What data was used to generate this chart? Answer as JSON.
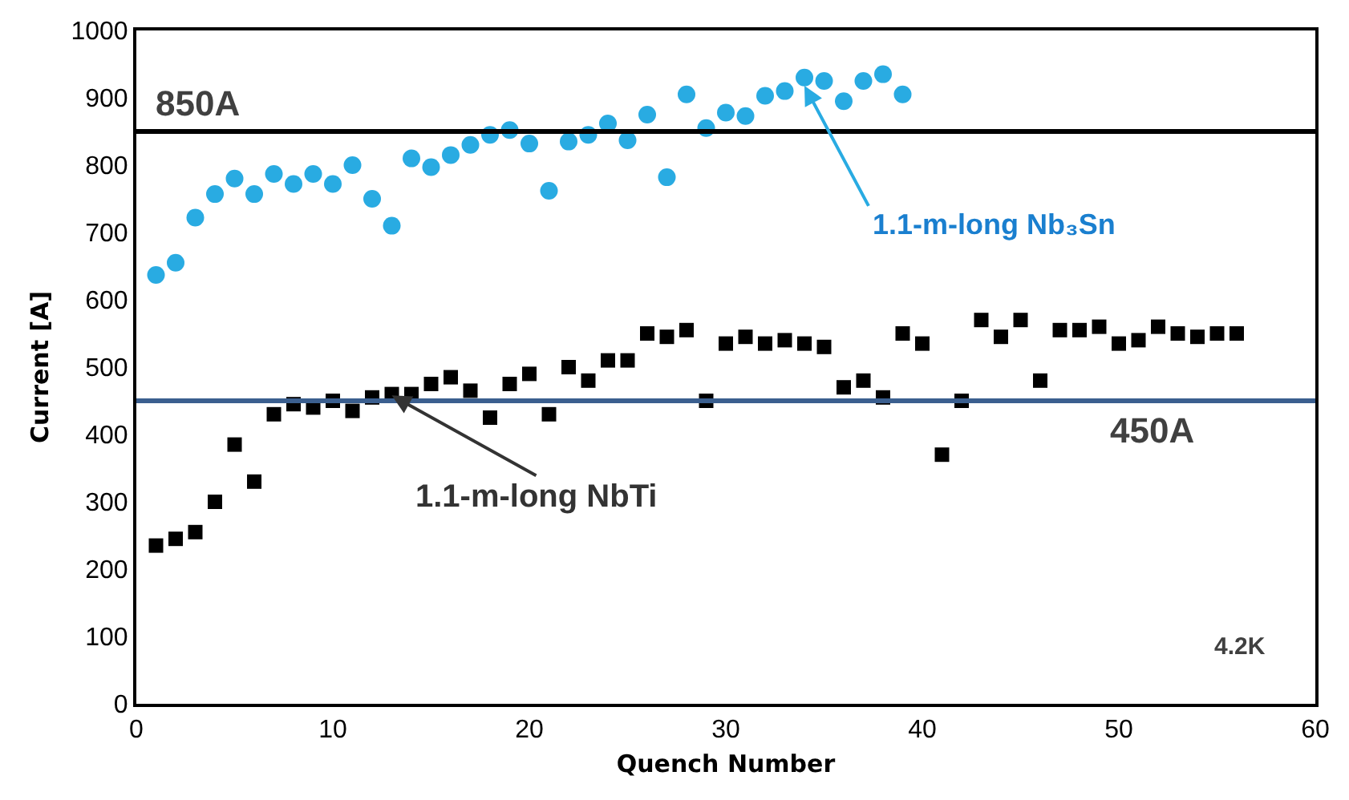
{
  "chart_data": {
    "type": "scatter",
    "xlabel": "Quench Number",
    "ylabel": "Current [A]",
    "xlim": [
      0,
      60
    ],
    "xticks": [
      0,
      10,
      20,
      30,
      40,
      50,
      60
    ],
    "ylim": [
      0,
      1000
    ],
    "yticks": [
      0,
      100,
      200,
      300,
      400,
      500,
      600,
      700,
      800,
      900,
      1000
    ],
    "series": [
      {
        "color": "#29abe2",
        "marker": "circle",
        "x": [
          1,
          2,
          3,
          4,
          5,
          6,
          7,
          8,
          9,
          10,
          11,
          12,
          13,
          14,
          15,
          16,
          17,
          18,
          19,
          20,
          21,
          22,
          23,
          24,
          25,
          26,
          27,
          28,
          29,
          30,
          31,
          32,
          33,
          34,
          35,
          36,
          37,
          38,
          39
        ],
        "values": [
          637,
          655,
          722,
          757,
          780,
          757,
          787,
          772,
          787,
          772,
          800,
          750,
          710,
          810,
          797,
          815,
          830,
          845,
          852,
          832,
          762,
          835,
          845,
          862,
          837,
          875,
          782,
          905,
          855,
          878,
          873,
          903,
          910,
          930,
          925,
          895,
          925,
          935,
          905
        ]
      },
      {
        "color": "#000000",
        "marker": "square",
        "x": [
          1,
          2,
          3,
          4,
          5,
          6,
          7,
          8,
          9,
          10,
          11,
          12,
          13,
          14,
          15,
          16,
          17,
          18,
          19,
          20,
          21,
          22,
          23,
          24,
          25,
          26,
          27,
          28,
          29,
          30,
          31,
          32,
          33,
          34,
          35,
          36,
          37,
          38,
          39,
          40,
          41,
          42,
          43,
          44,
          45,
          46,
          47,
          48,
          49,
          50,
          51,
          52,
          53,
          54,
          55,
          56
        ],
        "values": [
          235,
          245,
          255,
          300,
          385,
          330,
          430,
          445,
          440,
          450,
          435,
          455,
          460,
          460,
          475,
          485,
          465,
          425,
          475,
          490,
          430,
          500,
          480,
          510,
          510,
          550,
          545,
          555,
          450,
          535,
          545,
          535,
          540,
          535,
          530,
          470,
          480,
          455,
          550,
          535,
          370,
          450,
          570,
          545,
          570,
          480,
          555,
          555,
          560,
          535,
          540,
          560,
          550,
          545,
          550,
          550
        ]
      }
    ],
    "ref_lines": [
      {
        "axis": "y",
        "value": 850,
        "label": "850A",
        "color": "#000000"
      },
      {
        "axis": "y",
        "value": 450,
        "label": "450A",
        "color": "#3b5f8f"
      }
    ],
    "annotations": [
      {
        "text": "1.1-m-long Nb₃Sn",
        "x": 34,
        "y": 918
      },
      {
        "text": "1.1-m-long NbTi",
        "x": 13,
        "y": 458
      },
      "4.2K"
    ]
  }
}
